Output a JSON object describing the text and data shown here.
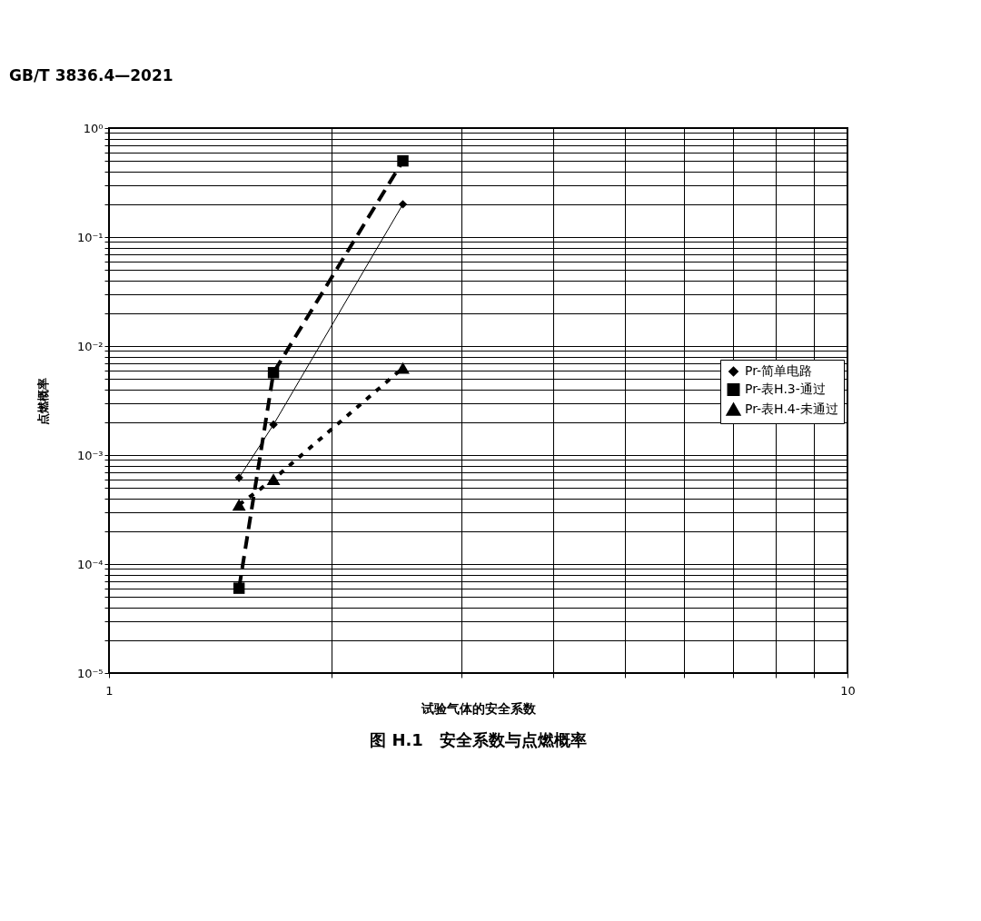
{
  "chart_data": {
    "type": "line",
    "title": "图 H.1　安全系数与点燃概率",
    "xlabel": "试验气体的安全系数",
    "ylabel": "点燃概率",
    "annotations": [
      "GB/T 3836.4—2021"
    ],
    "log": "xy",
    "grid": true,
    "legend": "right",
    "xlim": [
      1,
      10
    ],
    "ylim": [
      1e-05,
      1
    ],
    "xticks": [
      1,
      {
        "value": 2,
        "label": null
      },
      {
        "value": 3,
        "label": null
      },
      {
        "value": 4,
        "label": null
      },
      {
        "value": 5,
        "label": null
      },
      {
        "value": 6,
        "label": null
      },
      {
        "value": 7,
        "label": null
      },
      {
        "value": 8,
        "label": null
      },
      {
        "value": 9,
        "label": null
      },
      10
    ],
    "yticks": [
      {
        "value": 1e-05,
        "label": "10⁻⁵"
      },
      {
        "value": 2e-05,
        "label": null
      },
      {
        "value": 3e-05,
        "label": null
      },
      {
        "value": 4e-05,
        "label": null
      },
      {
        "value": 5e-05,
        "label": null
      },
      {
        "value": 6e-05,
        "label": null
      },
      {
        "value": 7e-05,
        "label": null
      },
      {
        "value": 8e-05,
        "label": null
      },
      {
        "value": 9e-05,
        "label": null
      },
      {
        "value": 0.0001,
        "label": "10⁻⁴"
      },
      {
        "value": 0.0002,
        "label": null
      },
      {
        "value": 0.0003,
        "label": null
      },
      {
        "value": 0.0004,
        "label": null
      },
      {
        "value": 0.0005,
        "label": null
      },
      {
        "value": 0.0006,
        "label": null
      },
      {
        "value": 0.0007,
        "label": null
      },
      {
        "value": 0.0008,
        "label": null
      },
      {
        "value": 0.0009,
        "label": null
      },
      {
        "value": 0.001,
        "label": "10⁻³"
      },
      {
        "value": 0.002,
        "label": null
      },
      {
        "value": 0.003,
        "label": null
      },
      {
        "value": 0.004,
        "label": null
      },
      {
        "value": 0.005,
        "label": null
      },
      {
        "value": 0.006,
        "label": null
      },
      {
        "value": 0.007,
        "label": null
      },
      {
        "value": 0.008,
        "label": null
      },
      {
        "value": 0.009,
        "label": null
      },
      {
        "value": 0.01,
        "label": "10⁻²"
      },
      {
        "value": 0.02,
        "label": null
      },
      {
        "value": 0.03,
        "label": null
      },
      {
        "value": 0.04,
        "label": null
      },
      {
        "value": 0.05,
        "label": null
      },
      {
        "value": 0.06,
        "label": null
      },
      {
        "value": 0.07,
        "label": null
      },
      {
        "value": 0.08,
        "label": null
      },
      {
        "value": 0.09,
        "label": null
      },
      {
        "value": 0.1,
        "label": "10⁻¹"
      },
      {
        "value": 0.2,
        "label": null
      },
      {
        "value": 0.3,
        "label": null
      },
      {
        "value": 0.4,
        "label": null
      },
      {
        "value": 0.5,
        "label": null
      },
      {
        "value": 0.6,
        "label": null
      },
      {
        "value": 0.7,
        "label": null
      },
      {
        "value": 0.8,
        "label": null
      },
      {
        "value": 0.9,
        "label": null
      },
      {
        "value": 1,
        "label": "10⁰"
      }
    ],
    "series": [
      {
        "name": "Pr-简单电路",
        "color": "#000000",
        "marker": "diamond",
        "line_style": "solid",
        "x": [
          1.5,
          1.67,
          2.5
        ],
        "values": [
          0.00062,
          0.0019,
          0.2
        ]
      },
      {
        "name": "Pr-表H.3-通过",
        "color": "#000000",
        "marker": "square",
        "line_style": "dashed",
        "x": [
          1.5,
          1.67,
          2.5
        ],
        "values": [
          6e-05,
          0.0057,
          0.5
        ]
      },
      {
        "name": "Pr-表H.4-未通过",
        "color": "#000000",
        "marker": "triangle",
        "line_style": "dotted",
        "x": [
          1.5,
          1.67,
          2.5
        ],
        "values": [
          0.00035,
          0.0006,
          0.0063
        ]
      }
    ]
  }
}
